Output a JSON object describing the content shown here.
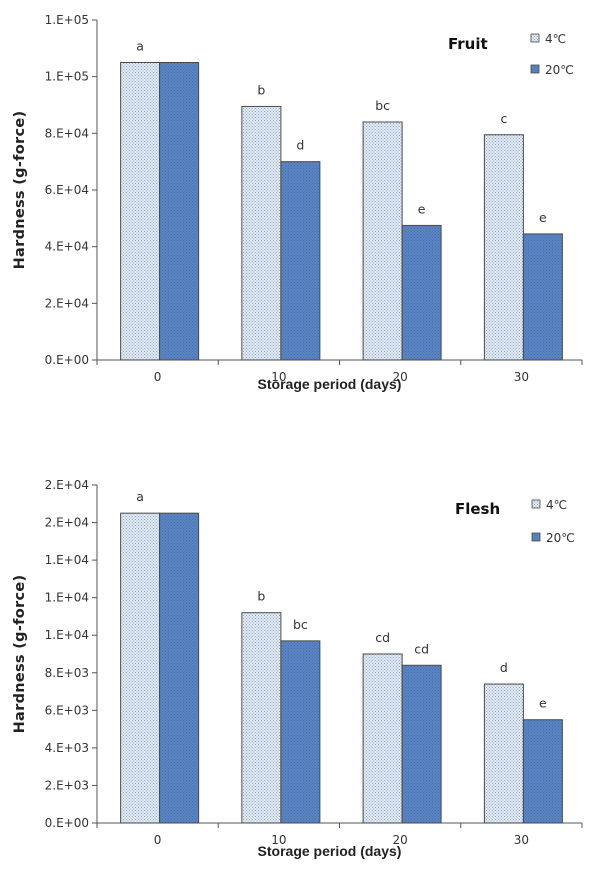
{
  "chart_data": [
    {
      "type": "bar",
      "panel_label": "Fruit",
      "categories": [
        "0",
        "10",
        "20",
        "30"
      ],
      "series": [
        {
          "name": "4℃",
          "values": [
            105000,
            89500,
            84000,
            79500
          ],
          "labels": [
            "a",
            "b",
            "bc",
            "c"
          ],
          "fill": "dotted",
          "color": "#dce6f2"
        },
        {
          "name": "20℃",
          "values": [
            105000,
            70000,
            47500,
            44500
          ],
          "labels": [
            "",
            "d",
            "e",
            "e"
          ],
          "fill": "solid",
          "color": "#4f81bd"
        }
      ],
      "xlabel": "Storage period (days)",
      "ylabel": "Hardness (g-force)",
      "ylim": [
        0,
        120000
      ],
      "yticks": [
        0,
        20000,
        40000,
        60000,
        80000,
        100000,
        120000
      ],
      "ytick_labels": [
        "0.E+00",
        "2.E+04",
        "4.E+04",
        "6.E+04",
        "8.E+04",
        "1.E+05",
        "1.E+05"
      ],
      "legend_placement": "top-right",
      "grid": false
    },
    {
      "type": "bar",
      "panel_label": "Flesh",
      "categories": [
        "0",
        "10",
        "20",
        "30"
      ],
      "series": [
        {
          "name": "4℃",
          "values": [
            16500,
            11200,
            9000,
            7400
          ],
          "labels": [
            "a",
            "b",
            "cd",
            "d"
          ],
          "fill": "dotted",
          "color": "#dce6f2"
        },
        {
          "name": "20℃",
          "values": [
            16500,
            9700,
            8400,
            5500
          ],
          "labels": [
            "",
            "bc",
            "cd",
            "e"
          ],
          "fill": "solid",
          "color": "#4f81bd"
        }
      ],
      "xlabel": "Storage period (days)",
      "ylabel": "Hardness (g-force)",
      "ylim": [
        0,
        18000
      ],
      "yticks": [
        0,
        2000,
        4000,
        6000,
        8000,
        10000,
        12000,
        14000,
        16000,
        18000
      ],
      "ytick_labels": [
        "0.E+00",
        "2.E+03",
        "4.E+03",
        "6.E+03",
        "8.E+03",
        "1.E+04",
        "1.E+04",
        "1.E+04",
        "2.E+04",
        "2.E+04"
      ],
      "legend_placement": "top-right",
      "grid": false
    }
  ]
}
